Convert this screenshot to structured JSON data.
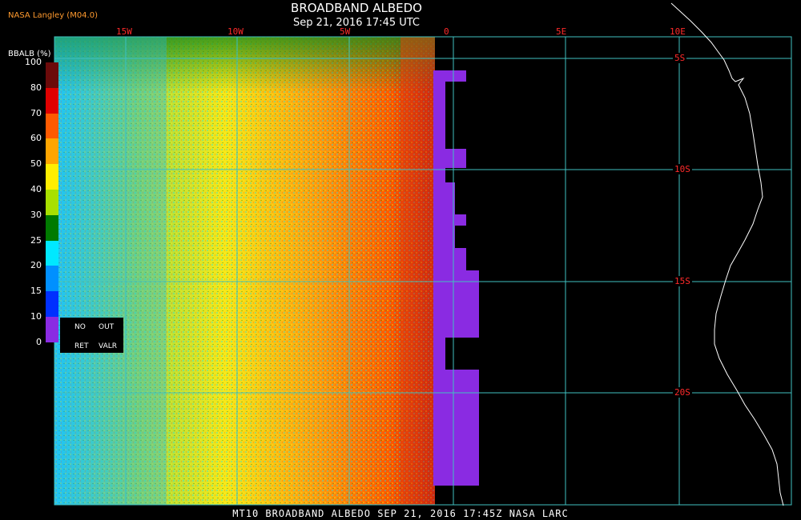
{
  "header": {
    "credit": "NASA Langley (M04.0)",
    "title": "BROADBAND ALBEDO",
    "datetime": "Sep 21, 2016 17:45 UTC"
  },
  "footer": {
    "line": "MT10  BROADBAND ALBEDO  SEP 21, 2016 17:45Z  NASA LARC"
  },
  "map": {
    "lon_labels": [
      "15W",
      "10W",
      "5W",
      "0",
      "5E",
      "10E"
    ],
    "lat_labels": [
      "5S",
      "10S",
      "15S",
      "20S"
    ],
    "grid_color": "#40c0c0"
  },
  "colorbar": {
    "title": "BBALB (%)",
    "ticks": [
      "100",
      "80",
      "70",
      "60",
      "50",
      "40",
      "30",
      "25",
      "20",
      "15",
      "10",
      "0"
    ],
    "colors": [
      "#6b0a0a",
      "#e00000",
      "#ff5a00",
      "#ffa500",
      "#ffee00",
      "#a8e000",
      "#007a00",
      "#00e8ff",
      "#0090ff",
      "#0030ff",
      "#8a2be2"
    ],
    "legend": {
      "no": "NO",
      "out": "OUT",
      "ret": "RET",
      "valr": "VALR"
    }
  }
}
